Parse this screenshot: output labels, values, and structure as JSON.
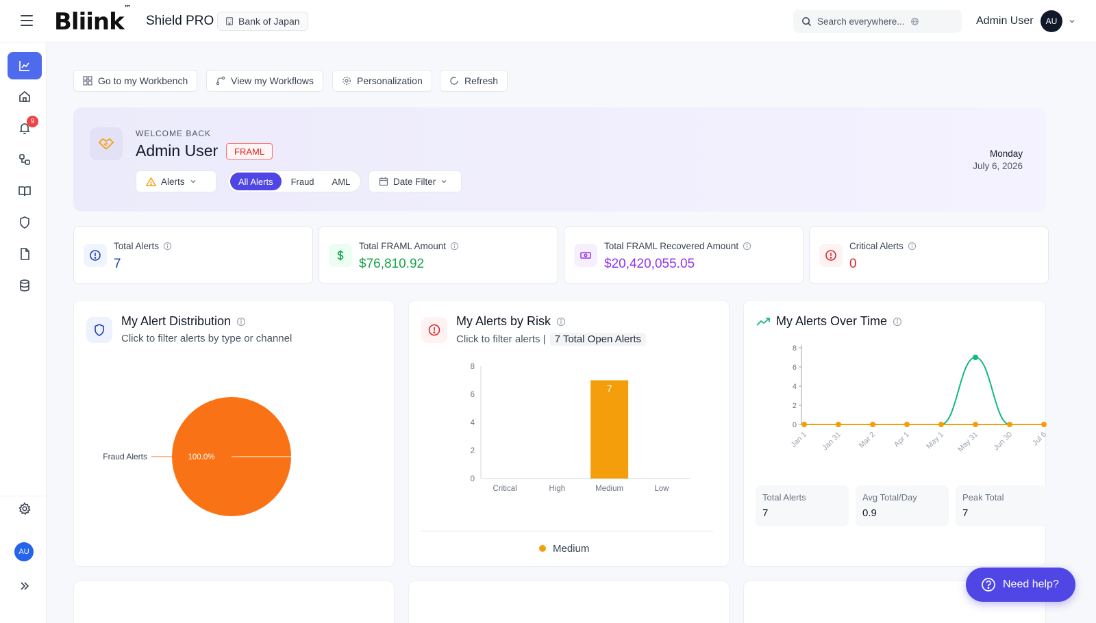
{
  "header": {
    "brand": "Bliink",
    "brand_tm": "™",
    "product": "Shield PRO",
    "org": "Bank of Japan",
    "search_placeholder": "Search everywhere...",
    "user_name": "Admin User",
    "user_initials": "AU"
  },
  "sidebar": {
    "items": [
      "dashboard",
      "home",
      "notifications",
      "workflows",
      "docs",
      "security",
      "reports",
      "data"
    ],
    "notification_count": "9",
    "user_initials": "AU"
  },
  "toolbar": {
    "workbench": "Go to my Workbench",
    "workflows": "View my Workflows",
    "personalization": "Personalization",
    "refresh": "Refresh"
  },
  "welcome": {
    "kicker": "WELCOME BACK",
    "name": "Admin User",
    "tag": "FRAML",
    "alerts_select": "Alerts",
    "segments": [
      "All Alerts",
      "Fraud",
      "AML"
    ],
    "date_filter": "Date Filter",
    "day": "Monday",
    "date": "July 6, 2026"
  },
  "stats": [
    {
      "label": "Total Alerts",
      "value": "7",
      "color": "#1e40af"
    },
    {
      "label": "Total FRAML Amount",
      "value": "$76,810.92",
      "color": "#16a34a"
    },
    {
      "label": "Total FRAML Recovered Amount",
      "value": "$20,420,055.05",
      "color": "#9333ea"
    },
    {
      "label": "Critical Alerts",
      "value": "0",
      "color": "#dc2626"
    }
  ],
  "cards": {
    "distribution": {
      "title": "My Alert Distribution",
      "subtitle": "Click to filter alerts by type or channel"
    },
    "risk": {
      "title": "My Alerts by Risk",
      "subtitle": "Click to filter alerts |",
      "open_alerts": "7 Total Open Alerts",
      "legend": "Medium"
    },
    "over_time": {
      "title": "My Alerts Over Time",
      "mini_stats": [
        {
          "label": "Total Alerts",
          "value": "7"
        },
        {
          "label": "Avg Total/Day",
          "value": "0.9"
        },
        {
          "label": "Peak Total",
          "value": "7"
        }
      ]
    }
  },
  "help": "Need help?",
  "chart_data": [
    {
      "type": "pie",
      "categories": [
        "Fraud Alerts"
      ],
      "values": [
        100.0
      ],
      "labels": [
        "100.0%"
      ],
      "colors": [
        "#f97316"
      ]
    },
    {
      "type": "bar",
      "categories": [
        "Critical",
        "High",
        "Medium",
        "Low"
      ],
      "values": [
        0,
        0,
        7,
        0
      ],
      "data_labels": [
        "",
        "",
        "7",
        ""
      ],
      "ylim": [
        0,
        8
      ],
      "yticks": [
        0,
        2,
        4,
        6,
        8
      ],
      "colors": [
        "#f59e0b"
      ],
      "legend": [
        "Medium"
      ],
      "legend_position": "bottom"
    },
    {
      "type": "line",
      "x": [
        "Jan 1",
        "Jan 31",
        "Mar 2",
        "Apr 1",
        "May 1",
        "May 31",
        "Jun 30",
        "Jul 6"
      ],
      "series": [
        {
          "values": [
            0,
            0,
            0,
            0,
            0,
            7,
            0,
            0
          ],
          "color": "#10b981"
        },
        {
          "values": [
            0,
            0,
            0,
            0,
            0,
            0,
            0,
            0
          ],
          "color": "#f59e0b"
        }
      ],
      "ylim": [
        0,
        8
      ],
      "yticks": [
        0,
        2,
        4,
        6,
        8
      ]
    }
  ]
}
